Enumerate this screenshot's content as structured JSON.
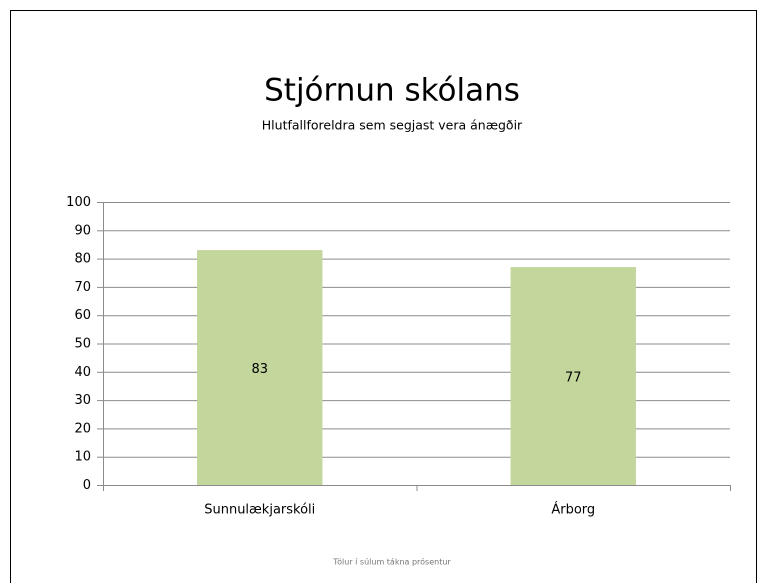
{
  "chart_data": {
    "type": "bar",
    "title": "Stjórnun skólans",
    "subtitle": "Hlutfallforeldra sem segjast vera ánægðir",
    "categories": [
      "Sunnulækjarskóli",
      "Árborg"
    ],
    "values": [
      83,
      77
    ],
    "color": "#c3d69b",
    "ylim": [
      0,
      100
    ],
    "yticks": [
      0,
      10,
      20,
      30,
      40,
      50,
      60,
      70,
      80,
      90,
      100
    ],
    "grid": true,
    "data_labels": true,
    "footnote": "Tölur í súlum tákna prósentur"
  }
}
